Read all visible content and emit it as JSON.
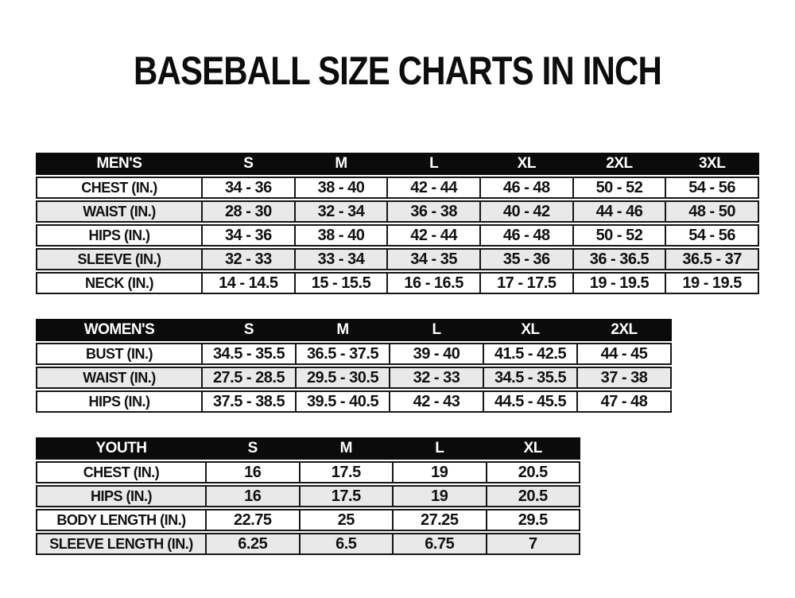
{
  "title": "BASEBALL SIZE CHARTS IN INCH",
  "colors": {
    "header_bg": "#0b0b0b",
    "header_text": "#ffffff",
    "row_alt_bg": "#e9e9e9",
    "border": "#161616",
    "text": "#111111"
  },
  "chart_data": [
    {
      "type": "table",
      "title": "MEN'S",
      "columns": [
        "S",
        "M",
        "L",
        "XL",
        "2XL",
        "3XL"
      ],
      "rows": [
        {
          "label": "CHEST (IN.)",
          "values": [
            "34 - 36",
            "38 - 40",
            "42 - 44",
            "46 - 48",
            "50 - 52",
            "54 - 56"
          ]
        },
        {
          "label": "WAIST (IN.)",
          "values": [
            "28 - 30",
            "32 - 34",
            "36 - 38",
            "40 - 42",
            "44 - 46",
            "48 - 50"
          ]
        },
        {
          "label": "HIPS (IN.)",
          "values": [
            "34 - 36",
            "38 - 40",
            "42 - 44",
            "46 - 48",
            "50 - 52",
            "54 - 56"
          ]
        },
        {
          "label": "SLEEVE (IN.)",
          "values": [
            "32 - 33",
            "33 - 34",
            "34 - 35",
            "35 - 36",
            "36 - 36.5",
            "36.5 - 37"
          ]
        },
        {
          "label": "NECK (IN.)",
          "values": [
            "14 - 14.5",
            "15 - 15.5",
            "16 - 16.5",
            "17 - 17.5",
            "19 - 19.5",
            "19 - 19.5"
          ]
        }
      ]
    },
    {
      "type": "table",
      "title": "WOMEN'S",
      "columns": [
        "S",
        "M",
        "L",
        "XL",
        "2XL"
      ],
      "rows": [
        {
          "label": "BUST (IN.)",
          "values": [
            "34.5 - 35.5",
            "36.5 - 37.5",
            "39 - 40",
            "41.5 - 42.5",
            "44 - 45"
          ]
        },
        {
          "label": "WAIST (IN.)",
          "values": [
            "27.5 - 28.5",
            "29.5 - 30.5",
            "32 - 33",
            "34.5 - 35.5",
            "37 - 38"
          ]
        },
        {
          "label": "HIPS (IN.)",
          "values": [
            "37.5 - 38.5",
            "39.5 - 40.5",
            "42 - 43",
            "44.5 - 45.5",
            "47 - 48"
          ]
        }
      ]
    },
    {
      "type": "table",
      "title": "YOUTH",
      "columns": [
        "S",
        "M",
        "L",
        "XL"
      ],
      "rows": [
        {
          "label": "CHEST (IN.)",
          "values": [
            "16",
            "17.5",
            "19",
            "20.5"
          ]
        },
        {
          "label": "HIPS (IN.)",
          "values": [
            "16",
            "17.5",
            "19",
            "20.5"
          ]
        },
        {
          "label": "BODY LENGTH (IN.)",
          "values": [
            "22.75",
            "25",
            "27.25",
            "29.5"
          ]
        },
        {
          "label": "SLEEVE LENGTH (IN.)",
          "values": [
            "6.25",
            "6.5",
            "6.75",
            "7"
          ]
        }
      ]
    }
  ]
}
